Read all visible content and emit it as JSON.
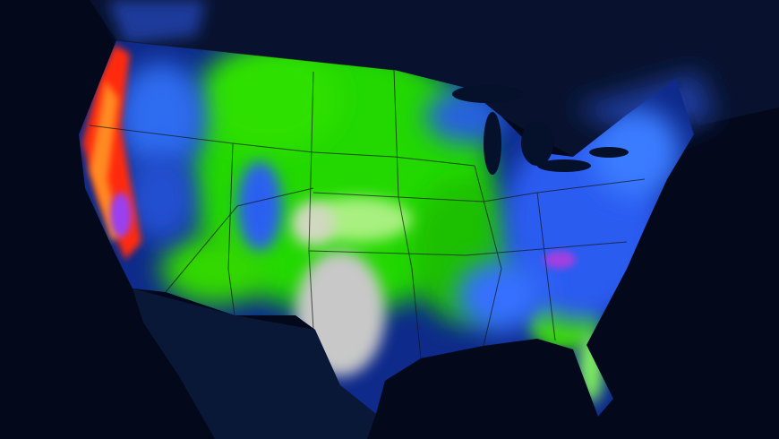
{
  "map": {
    "subject": "precipitation-over-contiguous-united-states",
    "colors": {
      "background": "#03081a",
      "land": "#0b1a3a",
      "ocean": "#020614",
      "light": "#1f4fd0",
      "moderate_blue": "#3a7bff",
      "green": "#22e000",
      "light_green": "#9cf070",
      "gray": "#c8c8c8",
      "purple": "#a040e0",
      "red": "#ff2a10",
      "orange": "#ff8a20",
      "borders": "#1a1a1a"
    }
  }
}
